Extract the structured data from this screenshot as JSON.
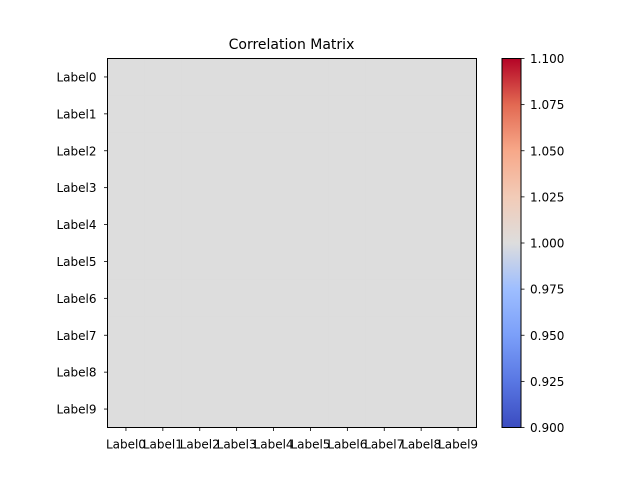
{
  "chart_data": {
    "type": "heatmap",
    "title": "Correlation Matrix",
    "x_labels": [
      "Label0",
      "Label1",
      "Label2",
      "Label3",
      "Label4",
      "Label5",
      "Label6",
      "Label7",
      "Label8",
      "Label9"
    ],
    "y_labels": [
      "Label0",
      "Label1",
      "Label2",
      "Label3",
      "Label4",
      "Label5",
      "Label6",
      "Label7",
      "Label8",
      "Label9"
    ],
    "values": [
      [
        1,
        1,
        1,
        1,
        1,
        1,
        1,
        1,
        1,
        1
      ],
      [
        1,
        1,
        1,
        1,
        1,
        1,
        1,
        1,
        1,
        1
      ],
      [
        1,
        1,
        1,
        1,
        1,
        1,
        1,
        1,
        1,
        1
      ],
      [
        1,
        1,
        1,
        1,
        1,
        1,
        1,
        1,
        1,
        1
      ],
      [
        1,
        1,
        1,
        1,
        1,
        1,
        1,
        1,
        1,
        1
      ],
      [
        1,
        1,
        1,
        1,
        1,
        1,
        1,
        1,
        1,
        1
      ],
      [
        1,
        1,
        1,
        1,
        1,
        1,
        1,
        1,
        1,
        1
      ],
      [
        1,
        1,
        1,
        1,
        1,
        1,
        1,
        1,
        1,
        1
      ],
      [
        1,
        1,
        1,
        1,
        1,
        1,
        1,
        1,
        1,
        1
      ],
      [
        1,
        1,
        1,
        1,
        1,
        1,
        1,
        1,
        1,
        1
      ]
    ],
    "colormap": "coolwarm",
    "colorbar": {
      "range": [
        0.9,
        1.1
      ],
      "ticks": [
        "0.900",
        "0.925",
        "0.950",
        "0.975",
        "1.000",
        "1.025",
        "1.050",
        "1.075",
        "1.100"
      ]
    },
    "grid": false,
    "legend": "colorbar-right"
  }
}
